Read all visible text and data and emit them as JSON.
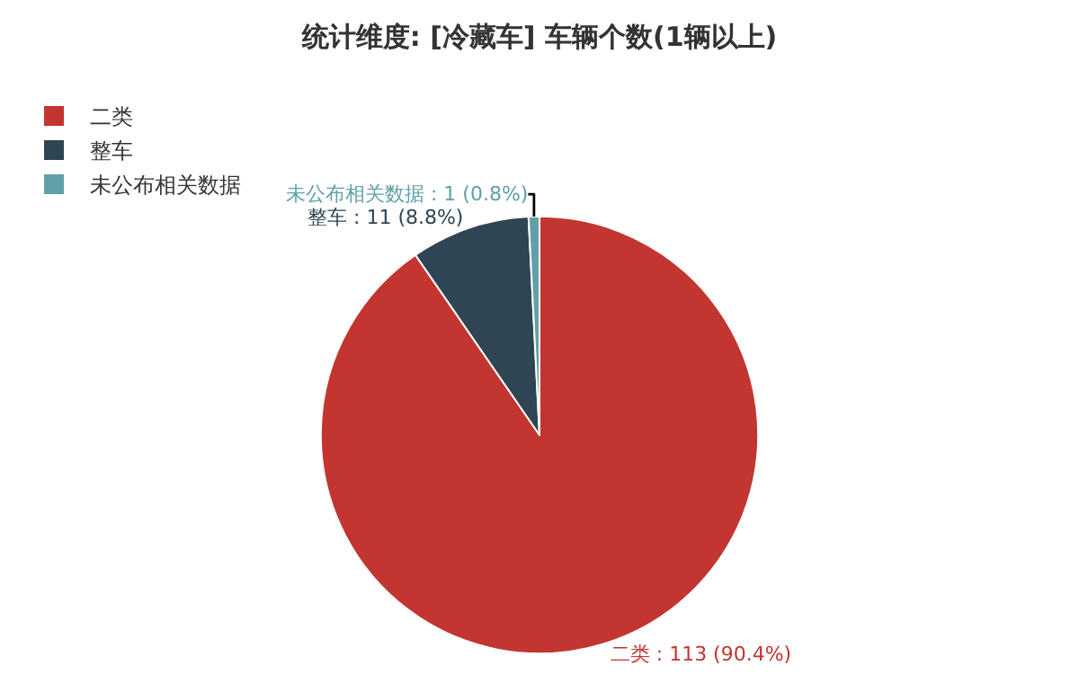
{
  "chart_data": {
    "type": "pie",
    "title": "统计维度: [冷藏车] 车辆个数(1辆以上)",
    "categories": [
      "二类",
      "整车",
      "未公布相关数据"
    ],
    "values": [
      113,
      11,
      1
    ],
    "colors": [
      "#c23531",
      "#2f4554",
      "#61a0a8"
    ],
    "value_labels": [
      "二类 : 113 (90.4%)",
      "整车 : 11 (8.8%)",
      "未公布相关数据 : 1 (0.8%)"
    ],
    "legend": "top left"
  }
}
